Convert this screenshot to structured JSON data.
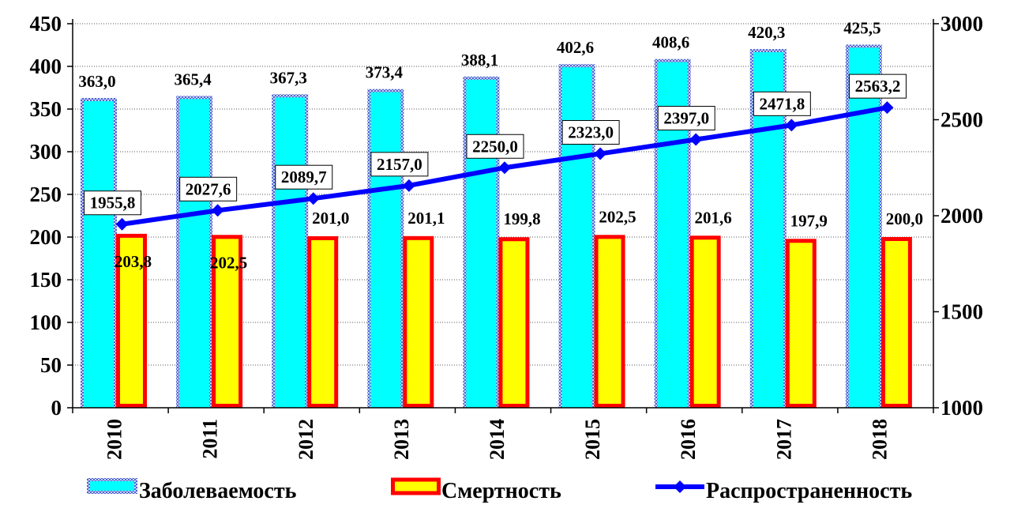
{
  "chart_data": {
    "type": "bar",
    "categories": [
      "2010",
      "2011",
      "2012",
      "2013",
      "2014",
      "2015",
      "2016",
      "2017",
      "2018"
    ],
    "series": [
      {
        "name": "Заболеваемость",
        "chart_type": "bar",
        "axis": "left",
        "values": [
          363.0,
          365.4,
          367.3,
          373.4,
          388.1,
          402.6,
          408.6,
          420.3,
          425.5
        ],
        "labels": [
          "363,0",
          "365,4",
          "367,3",
          "373,4",
          "388,1",
          "402,6",
          "408,6",
          "420,3",
          "425,5"
        ],
        "color": "#00FFFF",
        "border_color": "#5A6BD6"
      },
      {
        "name": "Смертность",
        "chart_type": "bar",
        "axis": "left",
        "values": [
          203.8,
          202.5,
          201.0,
          201.1,
          199.8,
          202.5,
          201.6,
          197.9,
          200.0
        ],
        "labels": [
          "203,8",
          "202,5",
          "201,0",
          "201,1",
          "199,8",
          "202,5",
          "201,6",
          "197,9",
          "200,0"
        ],
        "color": "#FFFF00",
        "border_color": "#FF0000"
      },
      {
        "name": "Распространенность",
        "chart_type": "line",
        "axis": "right",
        "values": [
          1955.8,
          2027.6,
          2089.7,
          2157.0,
          2250.0,
          2323.0,
          2397.0,
          2471.8,
          2563.2
        ],
        "labels": [
          "1955,8",
          "2027,6",
          "2089,7",
          "2157,0",
          "2250,0",
          "2323,0",
          "2397,0",
          "2471,8",
          "2563,2"
        ],
        "color": "#0000FF"
      }
    ],
    "y_left": {
      "range": [
        0,
        450
      ],
      "ticks": [
        0,
        50,
        100,
        150,
        200,
        250,
        300,
        350,
        400,
        450
      ],
      "tick_labels": [
        "0",
        "50",
        "100",
        "150",
        "200",
        "250",
        "300",
        "350",
        "400",
        "450"
      ]
    },
    "y_right": {
      "range": [
        1000,
        3000
      ],
      "ticks": [
        1000,
        1500,
        2000,
        2500,
        3000
      ],
      "tick_labels": [
        "1000",
        "1500",
        "2000",
        "2500",
        "3000"
      ]
    },
    "grid": true,
    "legend": "bottom",
    "title": "",
    "xlabel": "",
    "ylabel": ""
  }
}
